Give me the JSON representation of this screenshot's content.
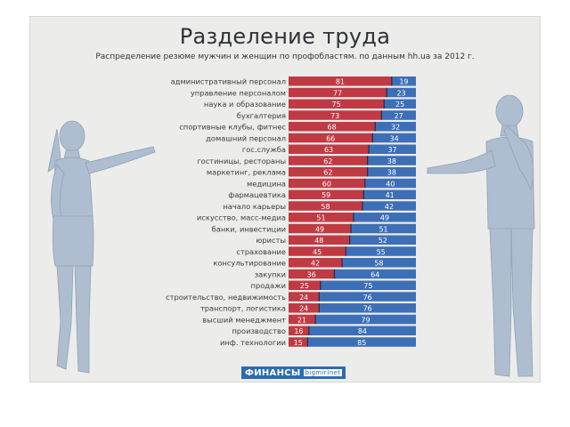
{
  "colors": {
    "men": "#c03a43",
    "women": "#3d6fb6",
    "label_text": "#ffffff",
    "figure": "#aebed0"
  },
  "logo": {
    "text": "ФИНАНСЫ",
    "sub": "bigmir)net"
  },
  "chart_data": {
    "type": "bar",
    "orientation": "horizontal",
    "stacked": "percent",
    "title": "Разделение труда",
    "subtitle": "Распределение резюме мужчин и женщин по профобластям. по данным hh.ua за 2012 г.",
    "categories": [
      "административный персонал",
      "управление персоналом",
      "наука и образование",
      "бухгалтерия",
      "спортивные клубы, фитнес",
      "домашний персонал",
      "гос.служба",
      "гостиницы, рестораны",
      "маркетинг, реклама",
      "медицина",
      "фармацевтика",
      "начало карьеры",
      "искусство, масс-медиа",
      "банки, инвестиции",
      "юристы",
      "страхование",
      "консультирование",
      "закупки",
      "продажи",
      "строительство, недвижимость",
      "транспорт, логистика",
      "высший менеджмент",
      "производство",
      "инф. технологии"
    ],
    "series": [
      {
        "name": "red",
        "values": [
          81,
          77,
          75,
          73,
          68,
          66,
          63,
          62,
          62,
          60,
          59,
          58,
          51,
          49,
          48,
          45,
          42,
          36,
          25,
          24,
          24,
          21,
          16,
          15
        ]
      },
      {
        "name": "blue",
        "values": [
          19,
          23,
          25,
          27,
          32,
          34,
          37,
          38,
          38,
          40,
          41,
          42,
          49,
          51,
          52,
          55,
          58,
          64,
          75,
          76,
          76,
          79,
          84,
          85
        ]
      }
    ],
    "xlim": [
      0,
      100
    ]
  }
}
